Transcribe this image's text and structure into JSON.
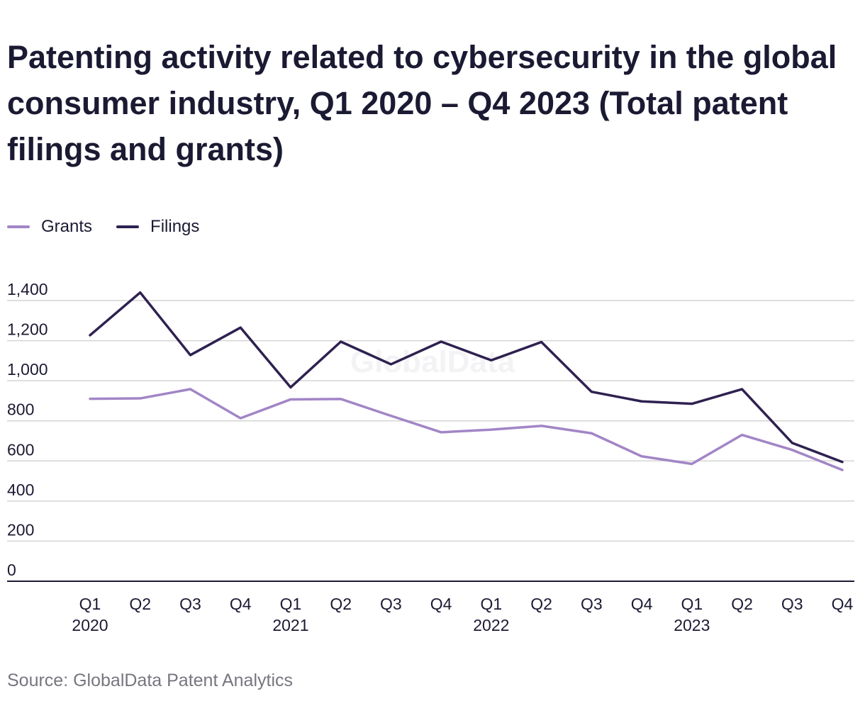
{
  "colors": {
    "grants": "#a285c6",
    "filings": "#2e2150",
    "grid": "#d4d4d4",
    "axis": "#1b1a33",
    "text": "#1b1a33",
    "source": "#77767f",
    "watermark": "#f3f3f5"
  },
  "chart_data": {
    "type": "line",
    "title": "Patenting activity related to cybersecurity in the global consumer industry, Q1 2020 – Q4 2023 (Total patent filings and grants)",
    "categories": [
      "Q1 2020",
      "Q2 2020",
      "Q3 2020",
      "Q4 2020",
      "Q1 2021",
      "Q2 2021",
      "Q3 2021",
      "Q4 2021",
      "Q1 2022",
      "Q2 2022",
      "Q3 2022",
      "Q4 2022",
      "Q1 2023",
      "Q2 2023",
      "Q3 2023",
      "Q4 2023"
    ],
    "tick_labels": [
      {
        "q": "Q1",
        "year": "2020"
      },
      {
        "q": "Q2",
        "year": ""
      },
      {
        "q": "Q3",
        "year": ""
      },
      {
        "q": "Q4",
        "year": ""
      },
      {
        "q": "Q1",
        "year": "2021"
      },
      {
        "q": "Q2",
        "year": ""
      },
      {
        "q": "Q3",
        "year": ""
      },
      {
        "q": "Q4",
        "year": ""
      },
      {
        "q": "Q1",
        "year": "2022"
      },
      {
        "q": "Q2",
        "year": ""
      },
      {
        "q": "Q3",
        "year": ""
      },
      {
        "q": "Q4",
        "year": ""
      },
      {
        "q": "Q1",
        "year": "2023"
      },
      {
        "q": "Q2",
        "year": ""
      },
      {
        "q": "Q3",
        "year": ""
      },
      {
        "q": "Q4",
        "year": ""
      }
    ],
    "series": [
      {
        "name": "Grants",
        "values": [
          910,
          912,
          958,
          813,
          907,
          909,
          825,
          743,
          756,
          775,
          738,
          623,
          585,
          730,
          655,
          555
        ]
      },
      {
        "name": "Filings",
        "values": [
          1227,
          1440,
          1128,
          1265,
          967,
          1195,
          1082,
          1195,
          1102,
          1193,
          945,
          897,
          885,
          958,
          690,
          595
        ]
      }
    ],
    "y_ticks": [
      "0",
      "200",
      "400",
      "600",
      "800",
      "1,000",
      "1,200",
      "1,400"
    ],
    "ylim": [
      0,
      1400
    ],
    "grid": true,
    "legend_position": "top-left",
    "watermark": "GlobalData"
  },
  "source": "Source: GlobalData Patent Analytics"
}
